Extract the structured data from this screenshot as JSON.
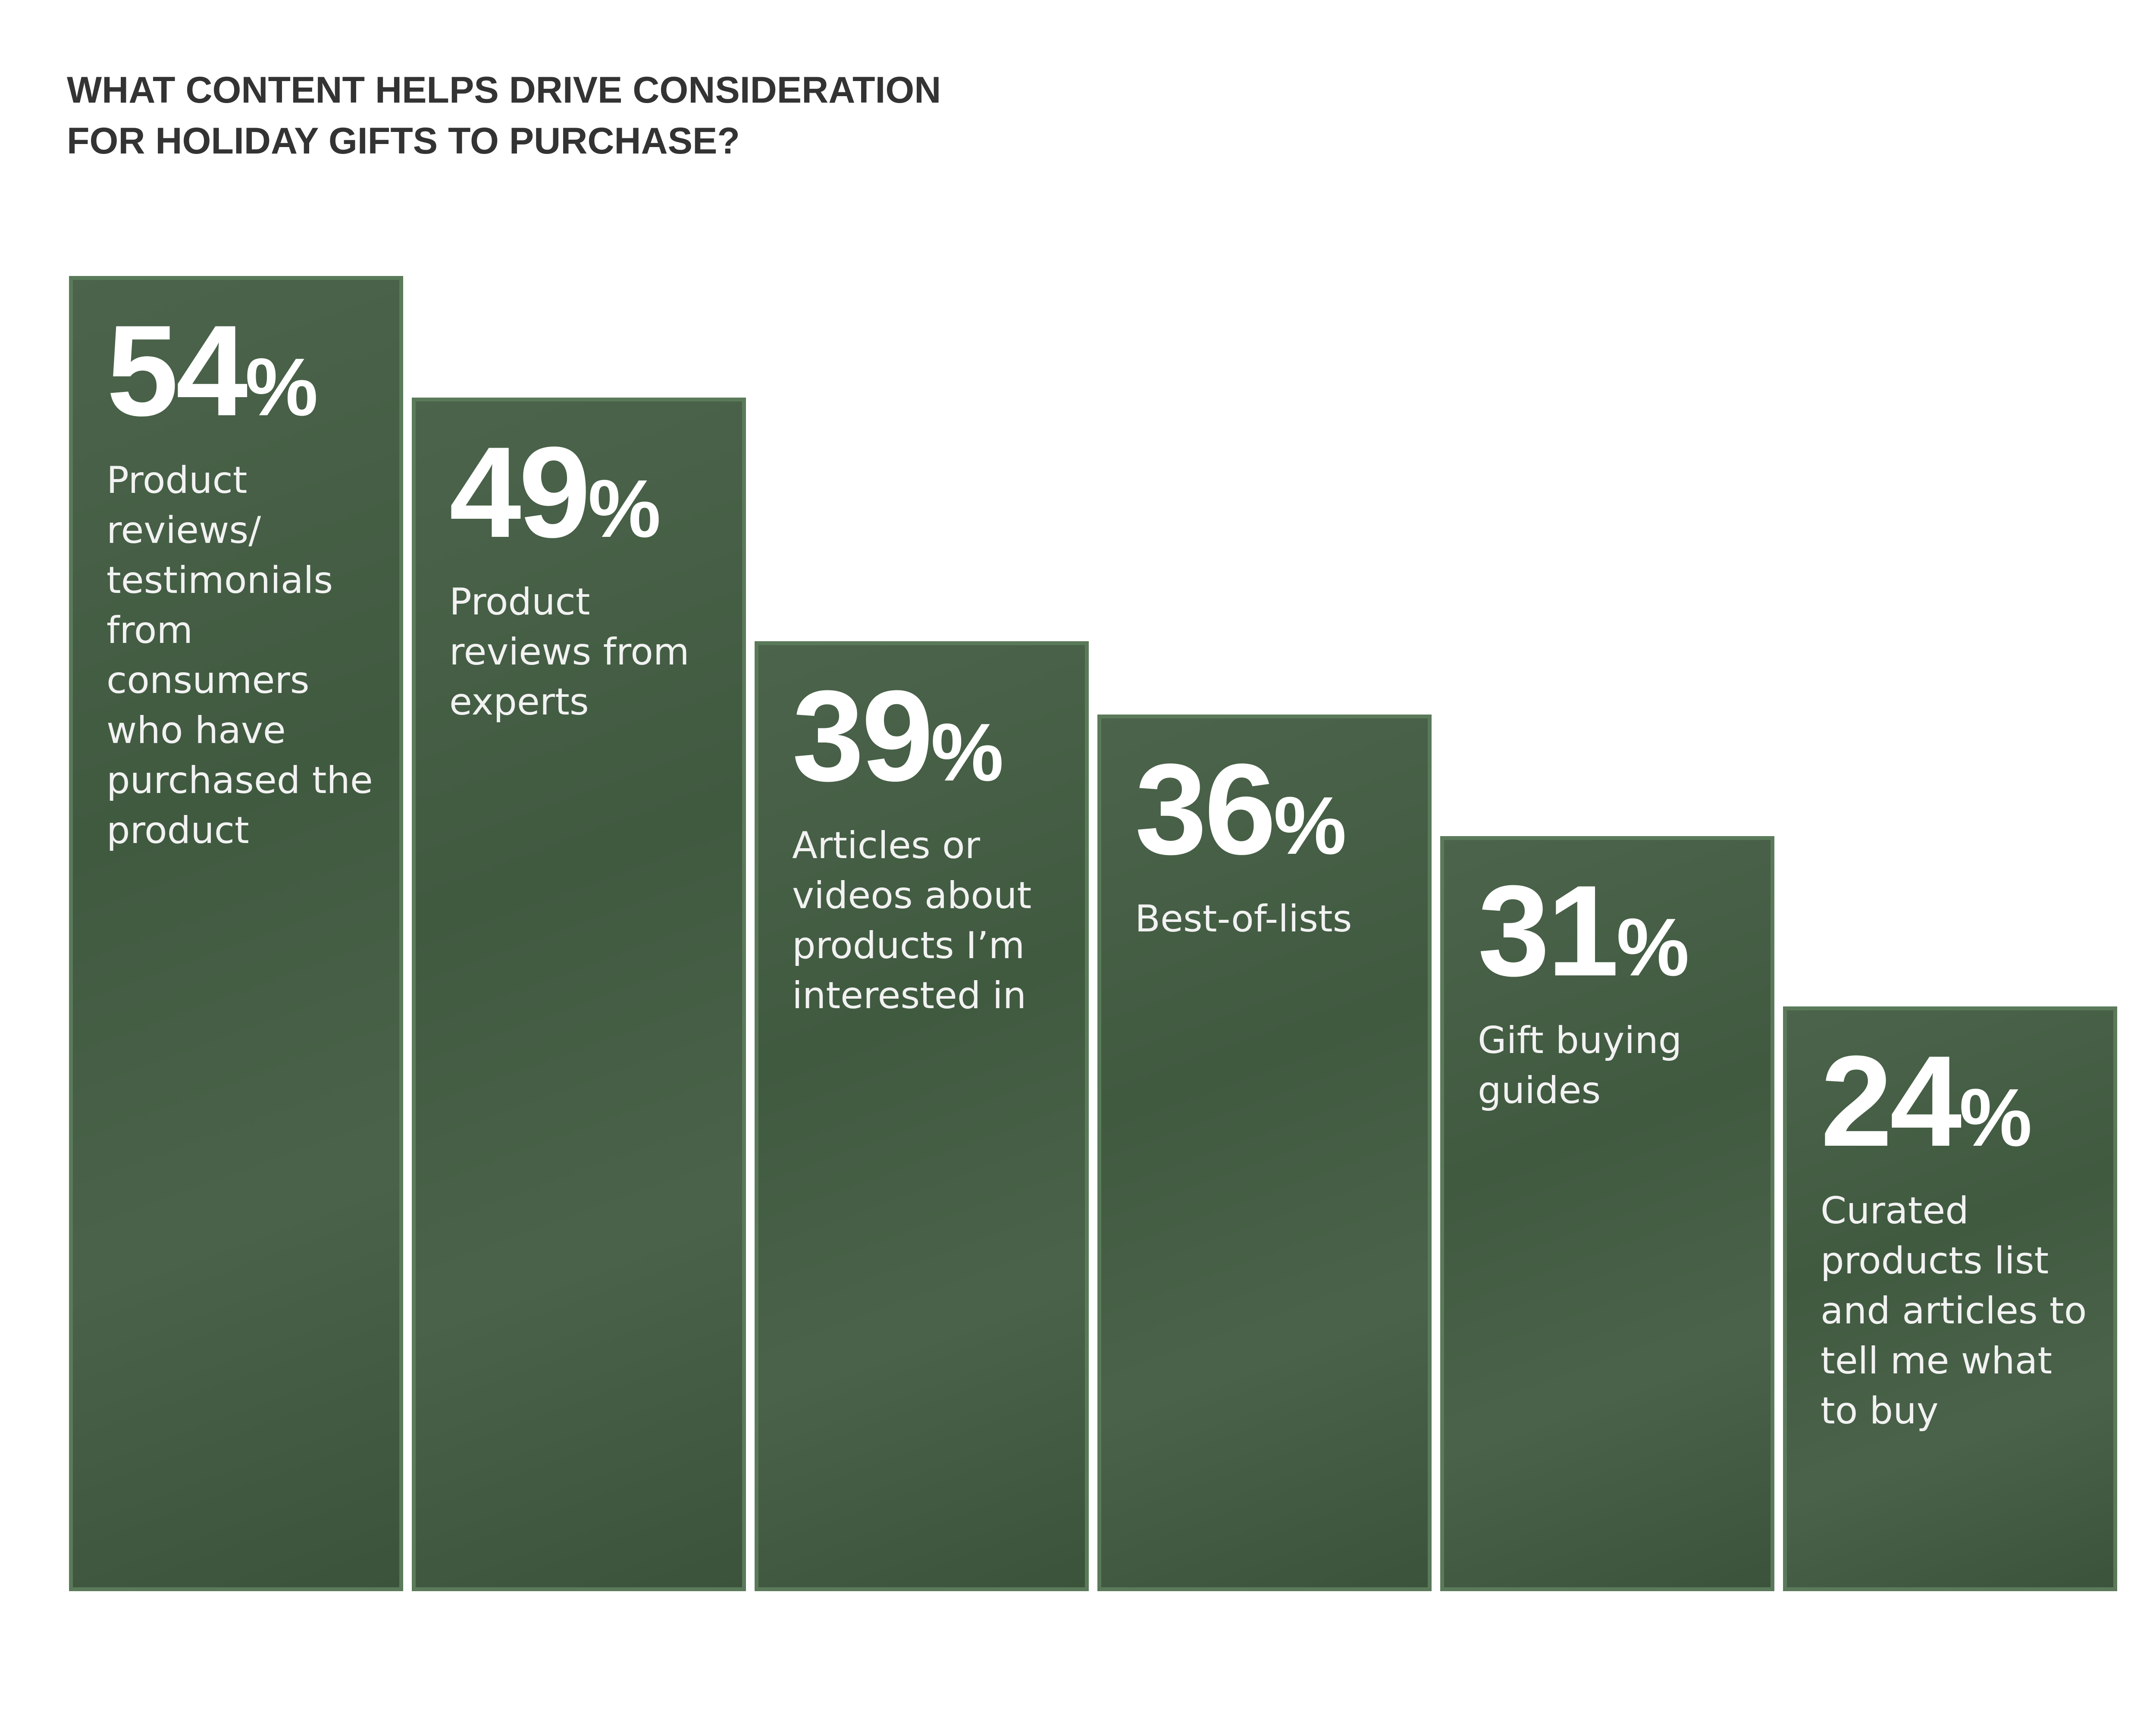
{
  "title_lines": [
    "WHAT CONTENT HELPS DRIVE CONSIDERATION",
    "FOR HOLIDAY GIFTS TO PURCHASE?"
  ],
  "colors": {
    "bar_fill": "#405a40",
    "bar_border": "#5a7a5a",
    "title": "#333333",
    "text": "#ffffff"
  },
  "chart_data": {
    "type": "bar",
    "title": "WHAT CONTENT HELPS DRIVE CONSIDERATION FOR HOLIDAY GIFTS TO PURCHASE?",
    "categories": [
      "Product reviews/ testimonials from consumers who have purchased the product",
      "Product reviews from experts",
      "Articles or videos about products I’m interested in",
      "Best-of-lists",
      "Gift buying guides",
      "Curated products list and articles to tell me what to buy"
    ],
    "values": [
      54,
      49,
      39,
      36,
      31,
      24
    ],
    "value_labels": [
      "54",
      "49",
      "39",
      "36",
      "31",
      "24"
    ],
    "unit": "%",
    "ylim": [
      0,
      54
    ],
    "grid": false,
    "legend": "none"
  }
}
